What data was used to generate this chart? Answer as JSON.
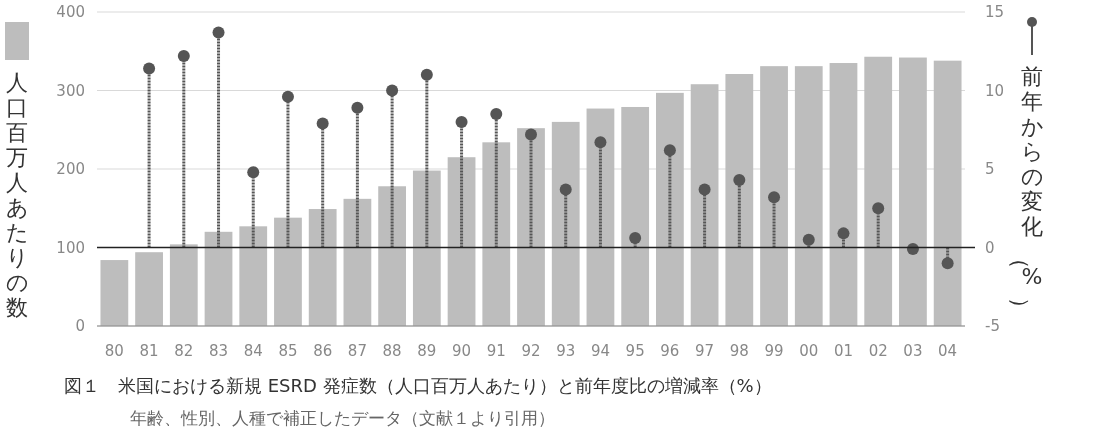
{
  "chart_data": {
    "type": "bar",
    "title": "図１　米国における新規 ESRD 発症数（人口百万人あたり）と前年度比の増減率（%）",
    "subtitle": "年齢、性別、人種で補正したデータ（文献１より引用）",
    "ylabel": "人口百万人あたりの数",
    "y2label": "前年からの変化（%）",
    "categories": [
      "80",
      "81",
      "82",
      "83",
      "84",
      "85",
      "86",
      "87",
      "88",
      "89",
      "90",
      "91",
      "92",
      "93",
      "94",
      "95",
      "96",
      "97",
      "98",
      "99",
      "00",
      "01",
      "02",
      "03",
      "04"
    ],
    "series": [
      {
        "color": "#bdbdbd",
        "values": [
          84,
          94,
          104,
          120,
          127,
          138,
          149,
          162,
          178,
          198,
          215,
          234,
          252,
          260,
          277,
          279,
          297,
          308,
          321,
          331,
          331,
          335,
          343,
          342,
          338
        ]
      },
      {
        "type": "lollipop",
        "axis": "y2",
        "color": "#555555",
        "values": [
          null,
          11.4,
          12.2,
          13.7,
          4.8,
          9.6,
          7.9,
          8.9,
          10,
          11,
          8,
          8.5,
          7.2,
          3.7,
          6.7,
          0.6,
          6.2,
          3.7,
          4.3,
          3.2,
          0.5,
          0.9,
          2.5,
          -0.1,
          -1
        ]
      }
    ],
    "ylim": [
      0,
      400
    ],
    "yticks": [
      0,
      100,
      200,
      300,
      400
    ],
    "y2lim": [
      -5,
      15
    ],
    "y2ticks": [
      -5,
      0,
      5,
      10,
      15
    ],
    "ref_lines": [
      {
        "axis": "y2",
        "value": 0,
        "color": "#222222"
      }
    ],
    "grid": "y"
  }
}
